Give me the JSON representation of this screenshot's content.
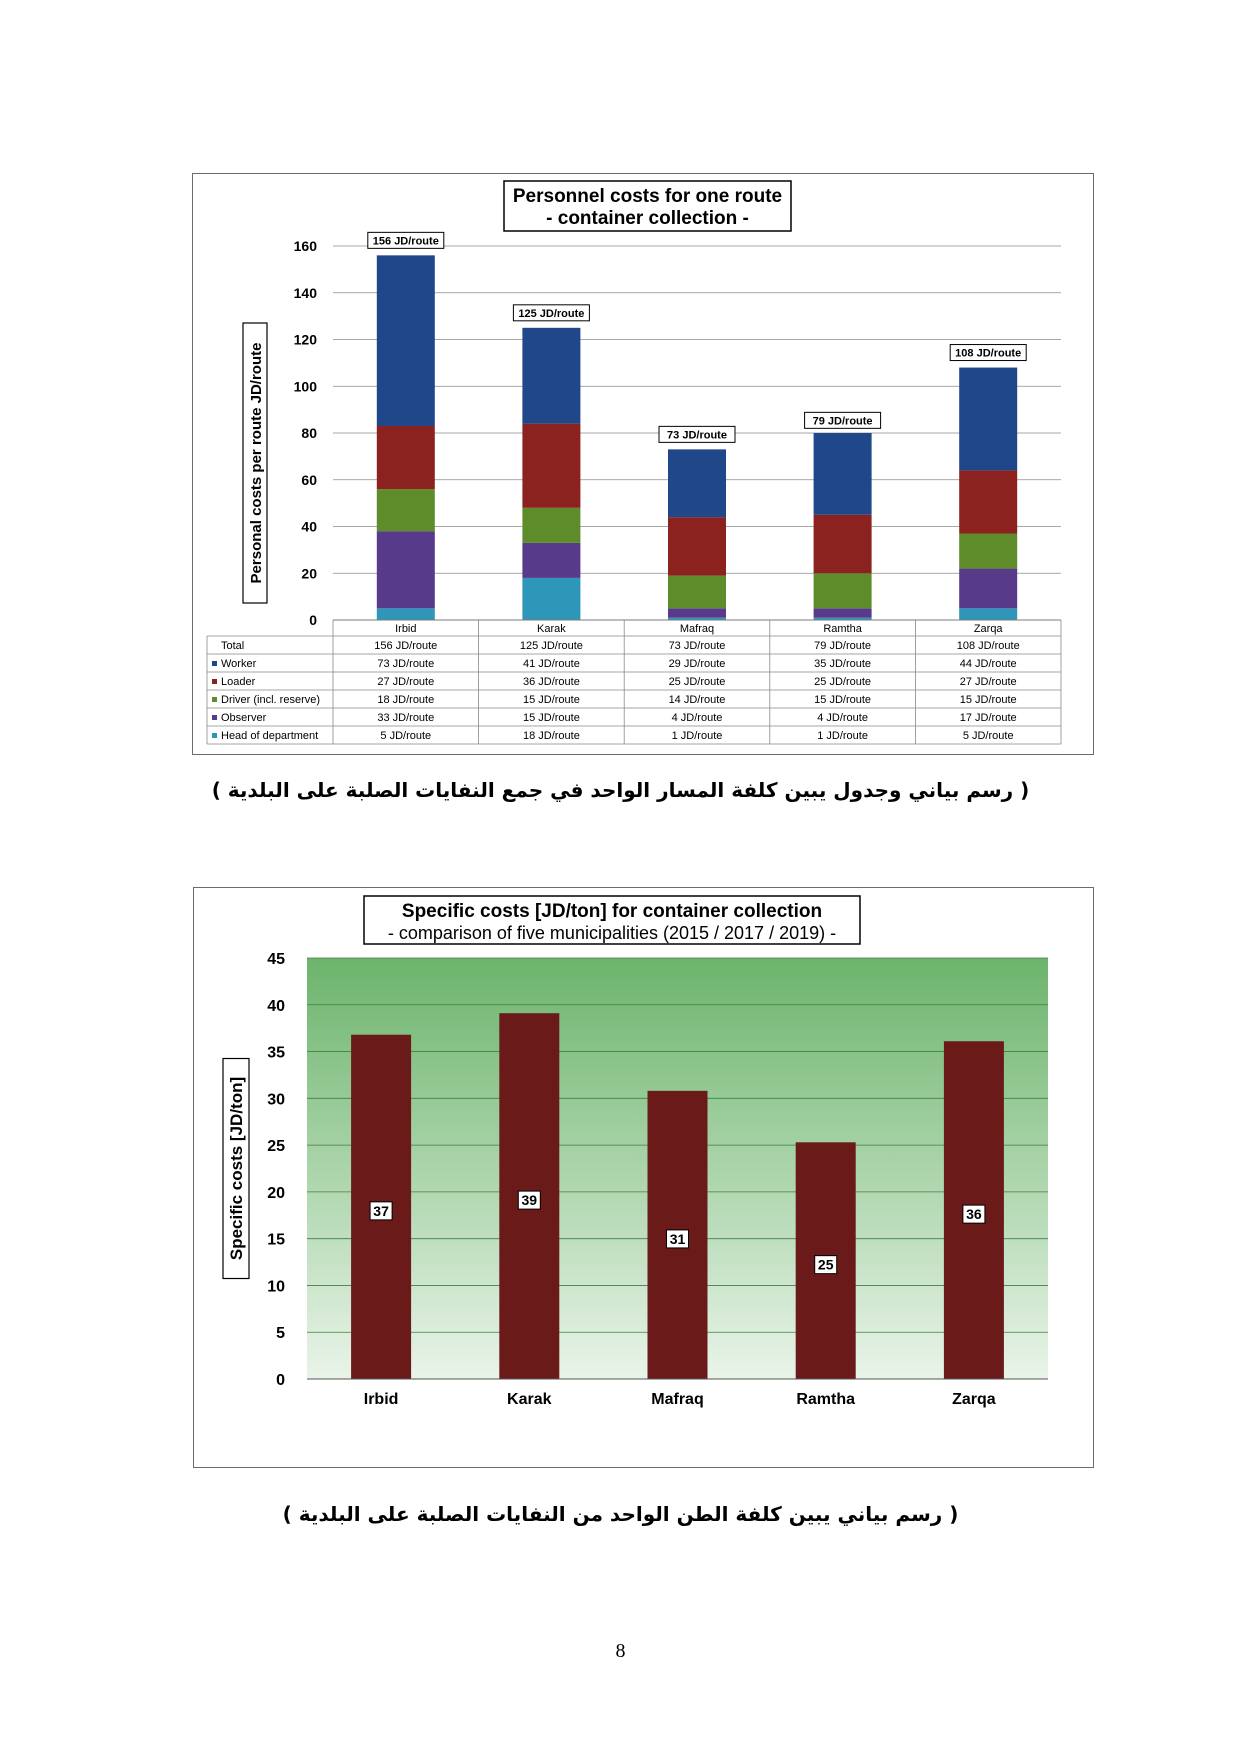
{
  "chart_data": [
    {
      "type": "bar",
      "stacked": true,
      "title_line1": "Personnel costs for one route",
      "title_line2": "- container collection -",
      "xlabel": "",
      "ylabel": "Personal costs per route JD/route",
      "ylim": [
        0,
        160
      ],
      "yticks": [
        0,
        20,
        40,
        60,
        80,
        100,
        120,
        140,
        160
      ],
      "grid": true,
      "categories": [
        "Irbid",
        "Karak",
        "Mafraq",
        "Ramtha",
        "Zarqa"
      ],
      "totals": [
        156,
        125,
        73,
        79,
        108
      ],
      "total_labels": [
        "156 JD/route",
        "125 JD/route",
        "73 JD/route",
        "79 JD/route",
        "108 JD/route"
      ],
      "series": [
        {
          "name": "Head of department",
          "color": "#2e96b8",
          "values": [
            5,
            18,
            1,
            1,
            5
          ]
        },
        {
          "name": "Observer",
          "color": "#583a8a",
          "values": [
            33,
            15,
            4,
            4,
            17
          ]
        },
        {
          "name": "Driver (incl. reserve)",
          "color": "#5e8c2a",
          "values": [
            18,
            15,
            14,
            15,
            15
          ]
        },
        {
          "name": "Loader",
          "color": "#8c2220",
          "values": [
            27,
            36,
            25,
            25,
            27
          ]
        },
        {
          "name": "Worker",
          "color": "#1f4789",
          "values": [
            73,
            41,
            29,
            35,
            44
          ]
        }
      ],
      "table": {
        "rows": [
          {
            "label": "Total",
            "cells": [
              "156 JD/route",
              "125 JD/route",
              "73 JD/route",
              "79 JD/route",
              "108 JD/route"
            ]
          },
          {
            "label": "Worker",
            "color": "#1f4789",
            "cells": [
              "73 JD/route",
              "41 JD/route",
              "29 JD/route",
              "35 JD/route",
              "44 JD/route"
            ]
          },
          {
            "label": "Loader",
            "color": "#8c2220",
            "cells": [
              "27 JD/route",
              "36 JD/route",
              "25 JD/route",
              "25 JD/route",
              "27 JD/route"
            ]
          },
          {
            "label": "Driver (incl. reserve)",
            "color": "#5e8c2a",
            "cells": [
              "18 JD/route",
              "15 JD/route",
              "14 JD/route",
              "15 JD/route",
              "15 JD/route"
            ]
          },
          {
            "label": "Observer",
            "color": "#583a8a",
            "cells": [
              "33 JD/route",
              "15 JD/route",
              "4 JD/route",
              "4 JD/route",
              "17 JD/route"
            ]
          },
          {
            "label": "Head of department",
            "color": "#2e96b8",
            "cells": [
              "5 JD/route",
              "18 JD/route",
              "1 JD/route",
              "1 JD/route",
              "5 JD/route"
            ]
          }
        ]
      }
    },
    {
      "type": "bar",
      "title_line1": "Specific costs [JD/ton] for container collection",
      "title_line2": "- comparison of five municipalities (2015 / 2017 / 2019) -",
      "xlabel": "",
      "ylabel": "Specific costs [JD/ton]",
      "ylim": [
        0,
        45
      ],
      "yticks": [
        0,
        5,
        10,
        15,
        20,
        25,
        30,
        35,
        40,
        45
      ],
      "grid": true,
      "categories": [
        "Irbid",
        "Karak",
        "Mafraq",
        "Ramtha",
        "Zarqa"
      ],
      "values": [
        36.8,
        39.1,
        30.8,
        25.3,
        36.1
      ],
      "data_labels": [
        "37",
        "39",
        "31",
        "25",
        "36"
      ],
      "bar_color": "#6b1a1a",
      "background_gradient": [
        "#6cb46c",
        "#e9f4e9"
      ]
    }
  ],
  "captions": {
    "caption1": "( رسم بياني وجدول يبين كلفة المسار الواحد في جمع النفايات الصلبة على البلدية )",
    "caption2": "( رسم بياني يبين كلفة الطن الواحد من النفايات الصلبة على البلدية )"
  },
  "page_number": "8"
}
